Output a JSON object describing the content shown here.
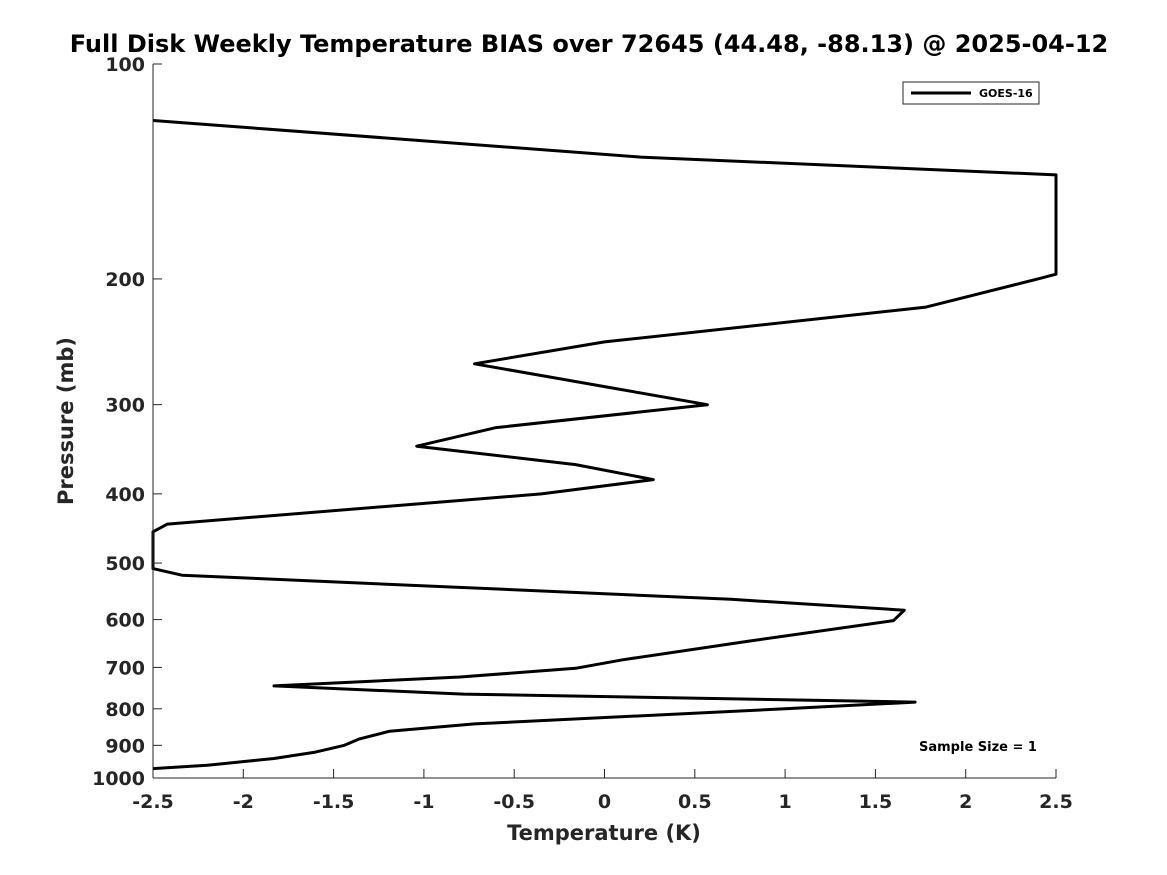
{
  "chart_data": {
    "type": "line",
    "title": "Full Disk Weekly Temperature BIAS over 72645 (44.48, -88.13) @ 2025-04-12",
    "xlabel": "Temperature (K)",
    "ylabel": "Pressure (mb)",
    "xlim": [
      -2.5,
      2.5
    ],
    "ylim": [
      100,
      1000
    ],
    "y_scale": "log",
    "y_reversed": true,
    "grid": false,
    "legend_position": "top-right",
    "xticks": [
      -2.5,
      -2,
      -1.5,
      -1,
      -0.5,
      0,
      0.5,
      1,
      1.5,
      2,
      2.5
    ],
    "xtick_labels": [
      "-2.5",
      "-2",
      "-1.5",
      "-1",
      "-0.5",
      "0",
      "0.5",
      "1",
      "1.5",
      "2",
      "2.5"
    ],
    "yticks": [
      100,
      200,
      300,
      400,
      500,
      600,
      700,
      800,
      900,
      1000
    ],
    "ytick_labels": [
      "100",
      "200",
      "300",
      "400",
      "500",
      "600",
      "700",
      "800",
      "900",
      "1000"
    ],
    "annotation": "Sample Size = 1",
    "series": [
      {
        "name": "GOES-16",
        "color": "#000000",
        "points": [
          [
            -2.5,
            120
          ],
          [
            0.2,
            135
          ],
          [
            2.5,
            143
          ],
          [
            2.5,
            197
          ],
          [
            2.4,
            200
          ],
          [
            1.78,
            219
          ],
          [
            0.0,
            245
          ],
          [
            -0.72,
            263
          ],
          [
            0.0,
            283
          ],
          [
            0.57,
            300
          ],
          [
            -0.6,
            323
          ],
          [
            -1.04,
            343
          ],
          [
            -0.16,
            364
          ],
          [
            0.27,
            382
          ],
          [
            -0.35,
            400
          ],
          [
            -2.42,
            441
          ],
          [
            -2.5,
            452
          ],
          [
            -2.5,
            509
          ],
          [
            -2.34,
            520
          ],
          [
            0.7,
            562
          ],
          [
            1.66,
            582
          ],
          [
            1.6,
            602
          ],
          [
            0.8,
            643
          ],
          [
            0.1,
            683
          ],
          [
            -0.16,
            702
          ],
          [
            -0.8,
            722
          ],
          [
            -1.83,
            743
          ],
          [
            -0.78,
            763
          ],
          [
            1.72,
            783
          ],
          [
            1.0,
            800
          ],
          [
            -0.72,
            840
          ],
          [
            -1.19,
            860
          ],
          [
            -1.36,
            882
          ],
          [
            -1.44,
            900
          ],
          [
            -1.6,
            920
          ],
          [
            -1.83,
            939
          ],
          [
            -2.2,
            960
          ],
          [
            -2.5,
            970
          ]
        ]
      }
    ]
  }
}
